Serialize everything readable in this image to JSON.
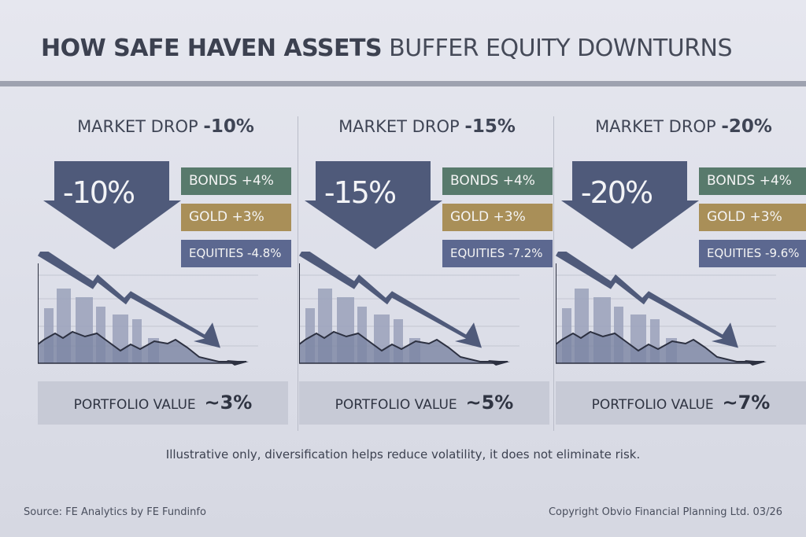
{
  "title": {
    "bold": "HOW SAFE HAVEN ASSETS",
    "light": "BUFFER EQUITY DOWNTURNS"
  },
  "panels": [
    {
      "heading_prefix": "MARKET DROP",
      "heading_value": "-10%",
      "arrow_label": "-10%",
      "bonds": "BONDS +4%",
      "gold": "GOLD   +3%",
      "equities": "EQUITIES -4.8%",
      "portfolio_label": "PORTFOLIO VALUE",
      "portfolio_value": "~3%"
    },
    {
      "heading_prefix": "MARKET DROP",
      "heading_value": "-15%",
      "arrow_label": "-15%",
      "bonds": "BONDS +4%",
      "gold": "GOLD   +3%",
      "equities": "EQUITIES -7.2%",
      "portfolio_label": "PORTFOLIO VALUE",
      "portfolio_value": "~5%"
    },
    {
      "heading_prefix": "MARKET DROP",
      "heading_value": "-20%",
      "arrow_label": "-20%",
      "bonds": "BONDS +4%",
      "gold": "GOLD   +3%",
      "equities": "EQUITIES -9.6%",
      "portfolio_label": "PORTFOLIO VALUE",
      "portfolio_value": "~7%"
    }
  ],
  "colors": {
    "bonds": "#587a6c",
    "gold": "#a98f58",
    "equities": "#5c6890",
    "arrow": "#4f5a7a"
  },
  "note": "Illustrative only, diversification helps reduce volatility, it does not eliminate risk.",
  "footer": {
    "source": "Source: FE Analytics by FE Fundinfo",
    "copyright": "Copyright Obvio Financial Planning Ltd. 03/26"
  }
}
